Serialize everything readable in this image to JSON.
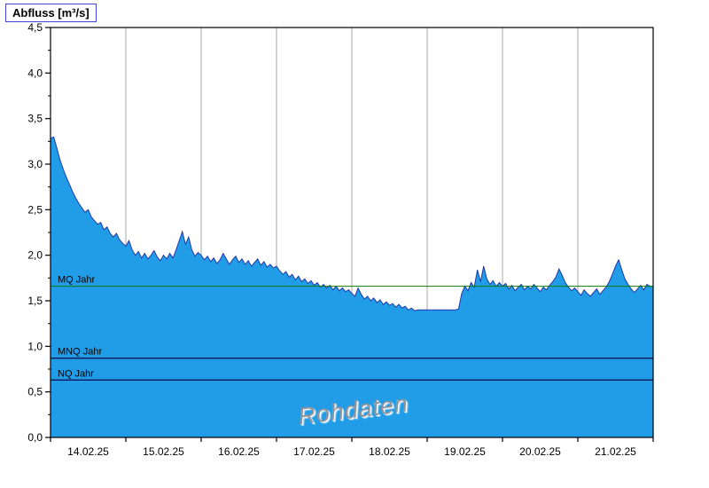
{
  "title": "Abfluss [m³/s]",
  "watermark": "Rohdaten",
  "colors": {
    "area_fill": "#219de8",
    "area_stroke": "#2038a8",
    "grid": "#a8a8a8",
    "axis": "#000000",
    "mq_line": "#0a7a0a",
    "ref_line": "#14145a",
    "title_box_border": "#4343d6",
    "watermark_text": "#8f949c"
  },
  "chart_data": {
    "type": "area",
    "title": "Abfluss [m³/s]",
    "ylabel": "Abfluss [m³/s]",
    "xlabel": "",
    "ylim": [
      0,
      4.5
    ],
    "ytick_step": 0.5,
    "ytick_labels": [
      "0,0",
      "0,5",
      "1,0",
      "1,5",
      "2,0",
      "2,5",
      "3,0",
      "3,5",
      "4,0",
      "4,5"
    ],
    "x_categories": [
      "14.02.25",
      "15.02.25",
      "16.02.25",
      "17.02.25",
      "18.02.25",
      "19.02.25",
      "20.02.25",
      "21.02.25"
    ],
    "samples_per_day": 24,
    "grid": "vertical-only",
    "legend": "none",
    "annotations": [
      "MQ Jahr",
      "MNQ Jahr",
      "NQ Jahr",
      "Rohdaten"
    ],
    "reference_lines": [
      {
        "label": "MQ Jahr",
        "value": 1.66,
        "color": "#0a7a0a",
        "width": 1
      },
      {
        "label": "MNQ Jahr",
        "value": 0.87,
        "color": "#14145a",
        "width": 1.4
      },
      {
        "label": "NQ Jahr",
        "value": 0.63,
        "color": "#14145a",
        "width": 1.4
      }
    ],
    "values": [
      3.28,
      3.3,
      3.18,
      3.05,
      2.95,
      2.86,
      2.78,
      2.7,
      2.63,
      2.57,
      2.52,
      2.47,
      2.5,
      2.42,
      2.38,
      2.34,
      2.36,
      2.28,
      2.31,
      2.24,
      2.2,
      2.24,
      2.17,
      2.13,
      2.1,
      2.16,
      2.06,
      2.0,
      2.04,
      1.97,
      2.02,
      1.96,
      2.0,
      2.05,
      1.98,
      1.94,
      2.0,
      1.96,
      2.02,
      1.97,
      2.06,
      2.16,
      2.26,
      2.12,
      2.2,
      2.06,
      1.99,
      2.03,
      2.0,
      1.95,
      1.99,
      1.93,
      1.97,
      1.91,
      1.95,
      2.02,
      1.96,
      1.9,
      1.95,
      1.99,
      1.92,
      1.96,
      1.9,
      1.94,
      1.88,
      1.92,
      1.96,
      1.89,
      1.93,
      1.87,
      1.9,
      1.86,
      1.88,
      1.83,
      1.79,
      1.82,
      1.76,
      1.79,
      1.73,
      1.77,
      1.71,
      1.74,
      1.69,
      1.72,
      1.67,
      1.7,
      1.65,
      1.68,
      1.64,
      1.67,
      1.62,
      1.66,
      1.61,
      1.64,
      1.6,
      1.62,
      1.58,
      1.55,
      1.64,
      1.57,
      1.52,
      1.55,
      1.5,
      1.53,
      1.48,
      1.51,
      1.46,
      1.49,
      1.45,
      1.47,
      1.43,
      1.46,
      1.42,
      1.44,
      1.4,
      1.42,
      1.39,
      1.4,
      1.4,
      1.4,
      1.4,
      1.4,
      1.4,
      1.4,
      1.4,
      1.4,
      1.4,
      1.4,
      1.4,
      1.4,
      1.41,
      1.58,
      1.66,
      1.61,
      1.7,
      1.65,
      1.84,
      1.71,
      1.88,
      1.74,
      1.68,
      1.72,
      1.66,
      1.7,
      1.66,
      1.69,
      1.63,
      1.67,
      1.61,
      1.65,
      1.68,
      1.62,
      1.66,
      1.63,
      1.68,
      1.64,
      1.6,
      1.65,
      1.62,
      1.67,
      1.71,
      1.76,
      1.85,
      1.78,
      1.7,
      1.65,
      1.61,
      1.64,
      1.6,
      1.56,
      1.62,
      1.58,
      1.55,
      1.59,
      1.63,
      1.57,
      1.61,
      1.65,
      1.71,
      1.79,
      1.88,
      1.95,
      1.84,
      1.74,
      1.68,
      1.63,
      1.59,
      1.63,
      1.67,
      1.62,
      1.68,
      1.66,
      1.66
    ]
  }
}
